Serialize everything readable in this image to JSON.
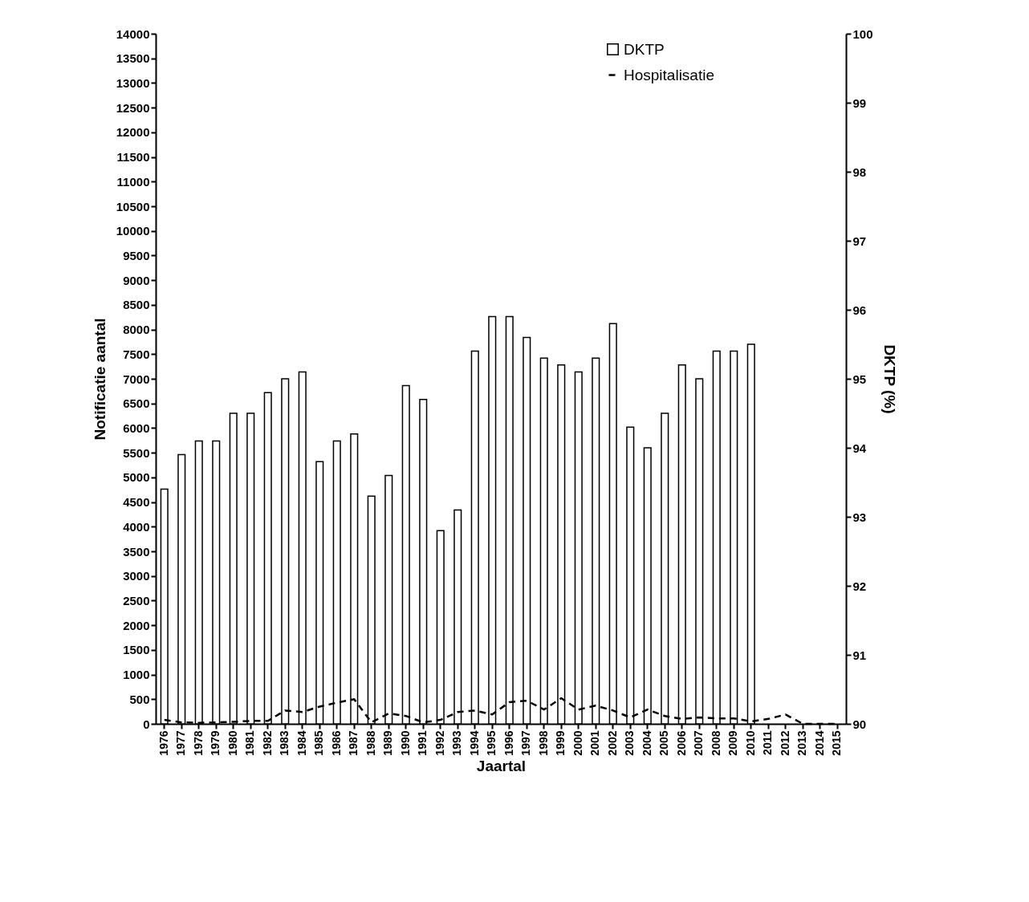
{
  "chart_data": {
    "type": "bar",
    "xlabel": "Jaartal",
    "ylabel": "Notificatie aantal",
    "y2label": "DKTP (%)",
    "categories": [
      "1976",
      "1977",
      "1978",
      "1979",
      "1980",
      "1981",
      "1982",
      "1983",
      "1984",
      "1985",
      "1986",
      "1987",
      "1988",
      "1989",
      "1990",
      "1991",
      "1992",
      "1993",
      "1994",
      "1995",
      "1996",
      "1997",
      "1998",
      "1999",
      "2000",
      "2001",
      "2002",
      "2003",
      "2004",
      "2005",
      "2006",
      "2007",
      "2008",
      "2009",
      "2010",
      "2011",
      "2012",
      "2013",
      "2014",
      "2015"
    ],
    "series": [
      {
        "name": "DKTP",
        "axis": "y2",
        "color": "#ffffff",
        "values": [
          93.4,
          93.9,
          94.1,
          94.1,
          94.5,
          94.5,
          94.8,
          95.0,
          95.1,
          93.8,
          94.1,
          94.2,
          93.3,
          93.6,
          94.9,
          94.7,
          92.8,
          93.1,
          95.4,
          95.9,
          95.9,
          95.6,
          95.3,
          95.2,
          95.1,
          95.3,
          95.8,
          94.3,
          94.0,
          94.5,
          95.2,
          95.0,
          95.4,
          95.4,
          95.5,
          null,
          null,
          null,
          null,
          null
        ]
      },
      {
        "name": "Hospitalisatie",
        "type": "line",
        "color": "#000000",
        "line_style": "dashed",
        "values": [
          80,
          30,
          20,
          30,
          40,
          60,
          60,
          270,
          240,
          350,
          430,
          500,
          30,
          210,
          160,
          30,
          80,
          240,
          270,
          190,
          440,
          470,
          290,
          520,
          290,
          370,
          270,
          130,
          290,
          160,
          100,
          130,
          110,
          110,
          50,
          100,
          190,
          0,
          0,
          0
        ]
      }
    ],
    "ylim": [
      0,
      14000
    ],
    "yticks": [
      0,
      500,
      1000,
      1500,
      2000,
      2500,
      3000,
      3500,
      4000,
      4500,
      5000,
      5500,
      6000,
      6500,
      7000,
      7500,
      8000,
      8500,
      9000,
      9500,
      10000,
      10500,
      11000,
      11500,
      12000,
      12500,
      13000,
      13500,
      14000
    ],
    "y2lim": [
      90,
      100
    ],
    "y2ticks": [
      90,
      91,
      92,
      93,
      94,
      95,
      96,
      97,
      98,
      99,
      100
    ],
    "grid": false,
    "legend": "top right"
  }
}
